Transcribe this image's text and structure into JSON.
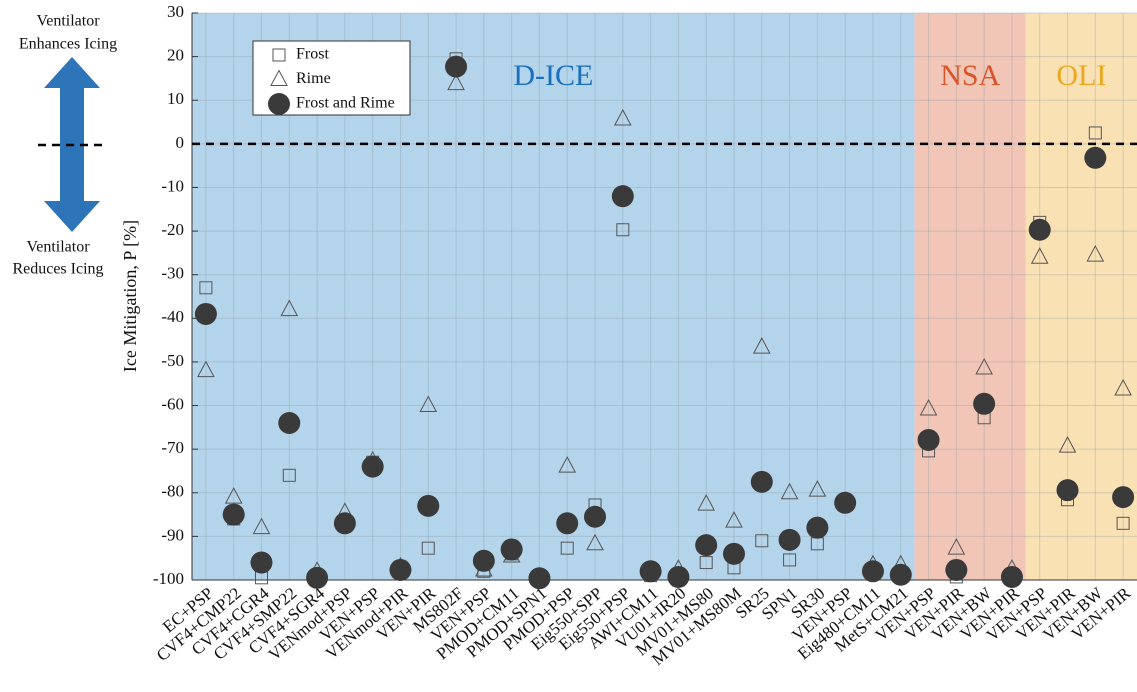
{
  "chart_data": {
    "type": "scatter",
    "ylabel": "Ice Mitigation, P [%]",
    "annotations": {
      "enhances": [
        "Ventilator",
        "Enhances Icing"
      ],
      "reduces": [
        "Ventilator",
        "Reduces Icing"
      ]
    },
    "categories": [
      "EC+PSP",
      "CVF4+CMP22",
      "CVF4+CGR4",
      "CVF4+SMP22",
      "CVF4+SGR4",
      "VENmod+PSP",
      "VEN+PSP",
      "VENmod+PIR",
      "VEN+PIR",
      "MS802F",
      "VEN+PSP",
      "PMOD+CM11",
      "PMOD+SPN1",
      "PMOD+PSP",
      "Eig550+SPP",
      "Eig550+PSP",
      "AWI+CM11",
      "VU01+IR20",
      "MV01+MS80",
      "MV01+MS80M",
      "SR25",
      "SPN1",
      "SR30",
      "VEN+PSP",
      "Eig480+CM11",
      "MetS+CM21",
      "VEN+PSP",
      "VEN+PIR",
      "VEN+BW",
      "VEN+PIR",
      "VEN+PSP",
      "VEN+PIR",
      "VEN+BW",
      "VEN+PIR"
    ],
    "regions": [
      {
        "label": "D-ICE",
        "categories": [
          0,
          25
        ],
        "color": "#b3d4ea",
        "text_color": "#1a70be"
      },
      {
        "label": "NSA",
        "categories": [
          26,
          29
        ],
        "color": "#f2c6b6",
        "text_color": "#d9542a"
      },
      {
        "label": "OLI",
        "categories": [
          30,
          33
        ],
        "color": "#f9e1b4",
        "text_color": "#eaa820"
      }
    ],
    "series": [
      {
        "name": "Frost",
        "marker": "square",
        "color": "#555555",
        "values": [
          -33,
          -86,
          -99.5,
          -76,
          -100,
          -87,
          -73,
          -98,
          -92.7,
          19.5,
          -98,
          -94,
          -100,
          -92.7,
          -82.8,
          -19.7,
          -99,
          -100,
          -96,
          -97.2,
          -91,
          -95.4,
          -91.7,
          -82.5,
          -98,
          -98.5,
          -70.4,
          -99.3,
          -62.8,
          -99.5,
          -18,
          -81.6,
          2.5,
          -87
        ]
      },
      {
        "name": "Rime",
        "marker": "triangle",
        "color": "#555555",
        "values": [
          -52,
          -81,
          -88,
          -38,
          -98,
          -84.5,
          -72.7,
          -97,
          -60,
          13.8,
          -97.7,
          -94.5,
          -99.5,
          -73.9,
          -91.7,
          5.7,
          -98,
          -97.5,
          -82.6,
          -86.5,
          -46.6,
          -80,
          -79.4,
          -82,
          -96.5,
          -96.5,
          -60.8,
          -92.7,
          -51.4,
          -97.5,
          -26,
          -69.3,
          -25.5,
          -56.2
        ]
      },
      {
        "name": "Frost and Rime",
        "marker": "circle",
        "color": "#3a3a3a",
        "values": [
          -39,
          -85,
          -96,
          -64,
          -99.5,
          -87,
          -74,
          -97.7,
          -83,
          17.7,
          -95.6,
          -93,
          -99.6,
          -87,
          -85.5,
          -12,
          -98,
          -99.3,
          -92,
          -94,
          -77.5,
          -90.8,
          -88,
          -82.3,
          -98,
          -98.8,
          -67.9,
          -97.7,
          -59.6,
          -99.3,
          -19.7,
          -79.4,
          -3.2,
          -81
        ]
      }
    ],
    "ylim": [
      -100,
      30
    ],
    "yticks": [
      -100,
      -90,
      -80,
      -70,
      -60,
      -50,
      -40,
      -30,
      -20,
      -10,
      0,
      10,
      20,
      30
    ],
    "reference_line": 0,
    "grid": true
  }
}
